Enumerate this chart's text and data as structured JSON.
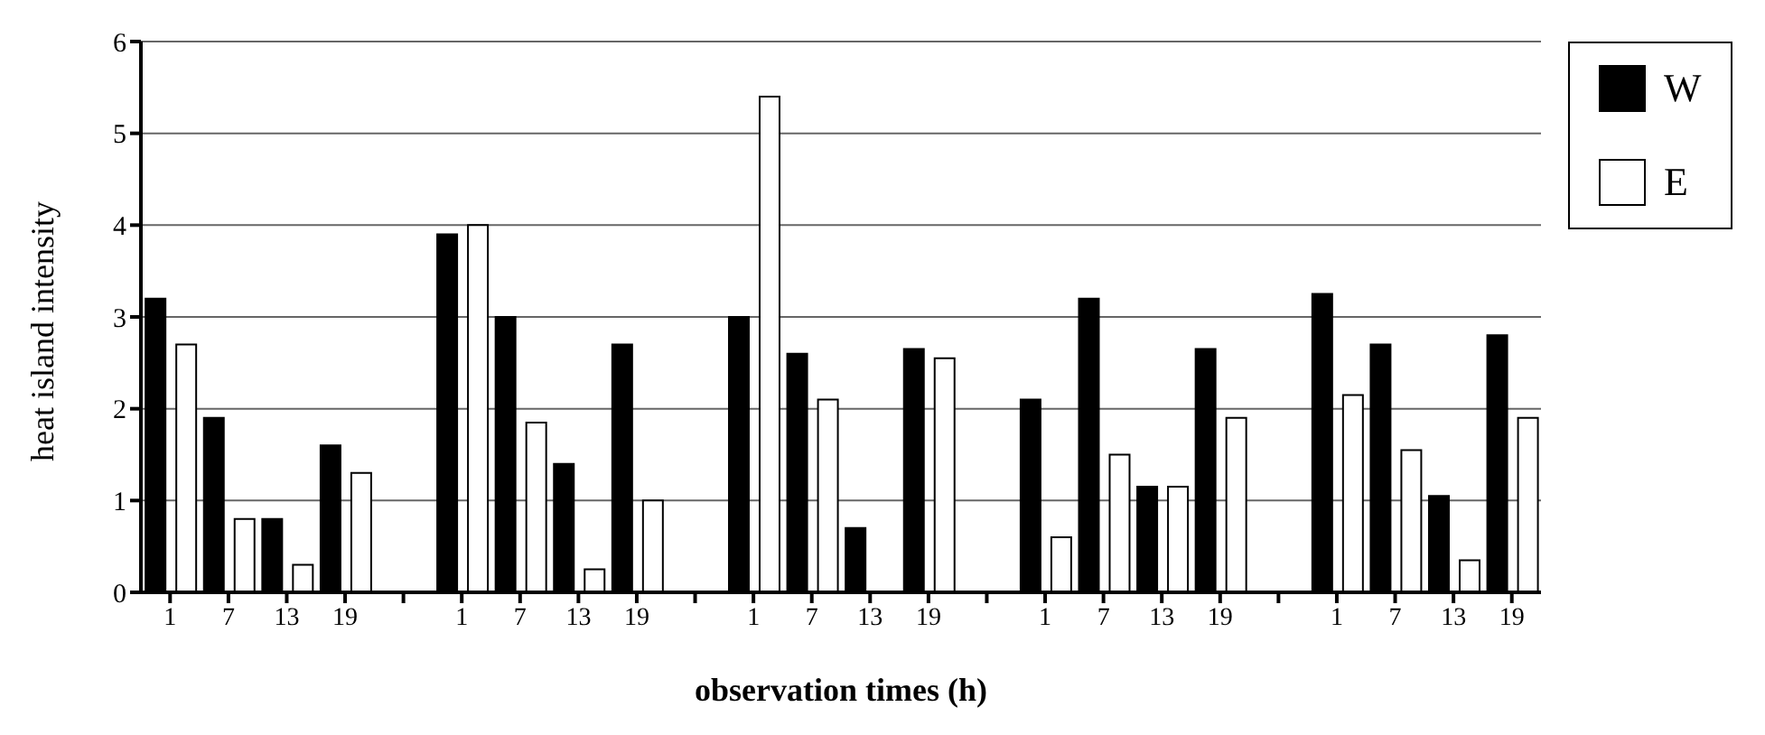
{
  "chart_data": {
    "type": "bar",
    "xlabel": "observation times (h)",
    "ylabel": "heat island intensity",
    "categories": [
      "1",
      "7",
      "13",
      "19",
      null,
      "1",
      "7",
      "13",
      "19",
      null,
      "1",
      "7",
      "13",
      "19",
      null,
      "1",
      "7",
      "13",
      "19",
      null,
      "1",
      "7",
      "13",
      "19"
    ],
    "series": [
      {
        "name": "W",
        "color": "#000000",
        "values": [
          3.2,
          1.9,
          0.8,
          1.6,
          null,
          3.9,
          3.0,
          1.4,
          2.7,
          null,
          3.0,
          2.6,
          0.7,
          2.65,
          null,
          2.1,
          3.2,
          1.15,
          2.65,
          null,
          3.25,
          2.7,
          1.05,
          2.8
        ]
      },
      {
        "name": "E",
        "color": "#ffffff",
        "values": [
          2.7,
          0.8,
          0.3,
          1.3,
          null,
          4.0,
          1.85,
          0.25,
          1.0,
          null,
          5.4,
          2.1,
          0,
          2.55,
          null,
          0.6,
          1.5,
          1.15,
          1.9,
          null,
          2.15,
          1.55,
          0.35,
          1.9
        ]
      }
    ],
    "ylim": [
      0,
      6
    ],
    "yticks": [
      0,
      1,
      2,
      3,
      4,
      5,
      6
    ],
    "grid": "y",
    "legend": "top right"
  }
}
